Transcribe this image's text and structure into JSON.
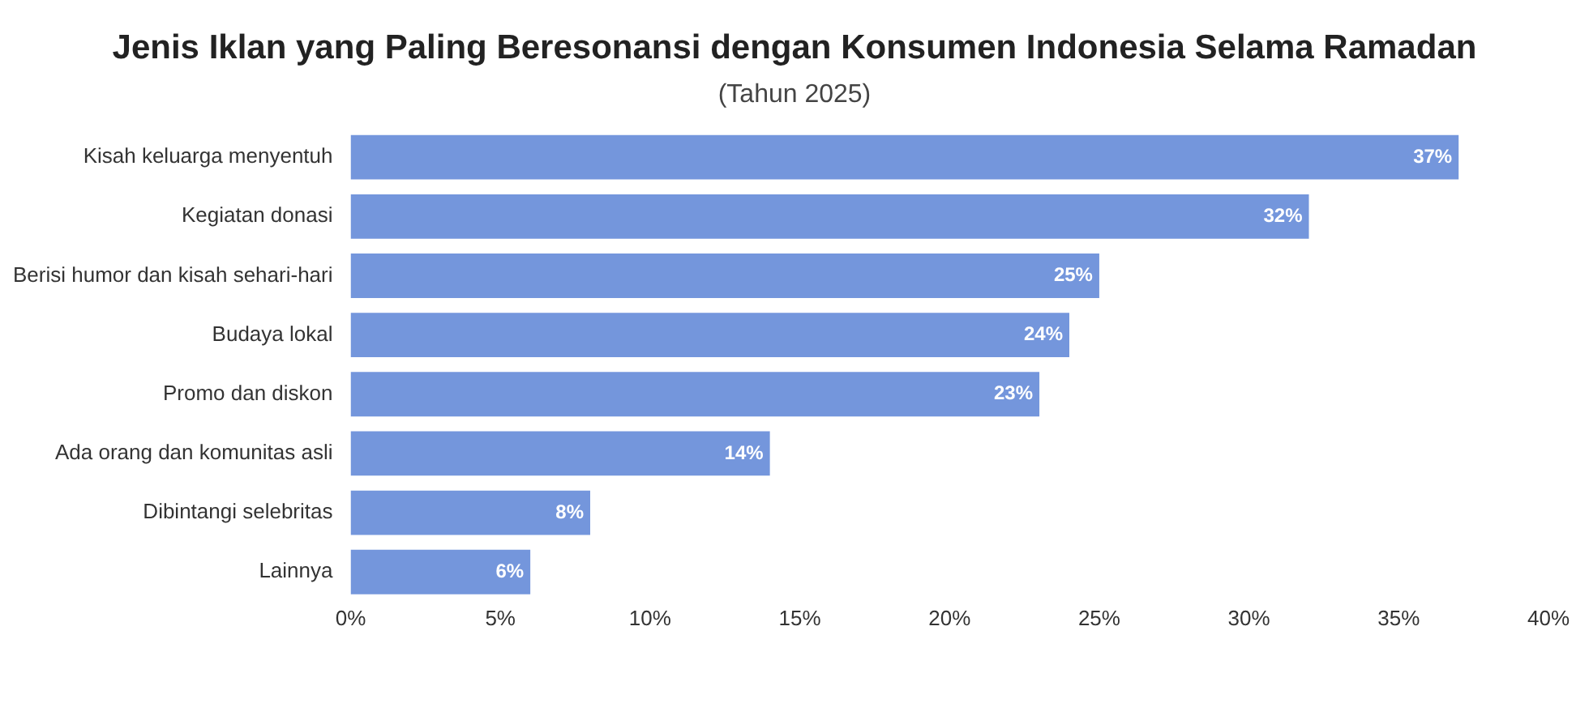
{
  "chart_data": {
    "type": "bar",
    "orientation": "horizontal",
    "title": "Jenis Iklan yang Paling Beresonansi dengan Konsumen Indonesia Selama Ramadan",
    "subtitle": "(Tahun 2025)",
    "categories": [
      "Kisah keluarga menyentuh",
      "Kegiatan donasi",
      "Berisi humor dan kisah sehari-hari",
      "Budaya lokal",
      "Promo dan diskon",
      "Ada orang dan komunitas asli",
      "Dibintangi selebritas",
      "Lainnya"
    ],
    "values": [
      37,
      32,
      25,
      24,
      23,
      14,
      8,
      6
    ],
    "value_labels": [
      "37%",
      "32%",
      "25%",
      "24%",
      "23%",
      "14%",
      "8%",
      "6%"
    ],
    "color": "#7496dc",
    "xlim": [
      0,
      40
    ],
    "xticks": [
      {
        "value": 0,
        "label": "0%"
      },
      {
        "value": 5,
        "label": "5%"
      },
      {
        "value": 10,
        "label": "10%"
      },
      {
        "value": 15,
        "label": "15%"
      },
      {
        "value": 20,
        "label": "20%"
      },
      {
        "value": 25,
        "label": "25%"
      },
      {
        "value": 30,
        "label": "30%"
      },
      {
        "value": 35,
        "label": "35%"
      },
      {
        "value": 40,
        "label": "40%"
      }
    ],
    "grid": false,
    "legend": false
  }
}
